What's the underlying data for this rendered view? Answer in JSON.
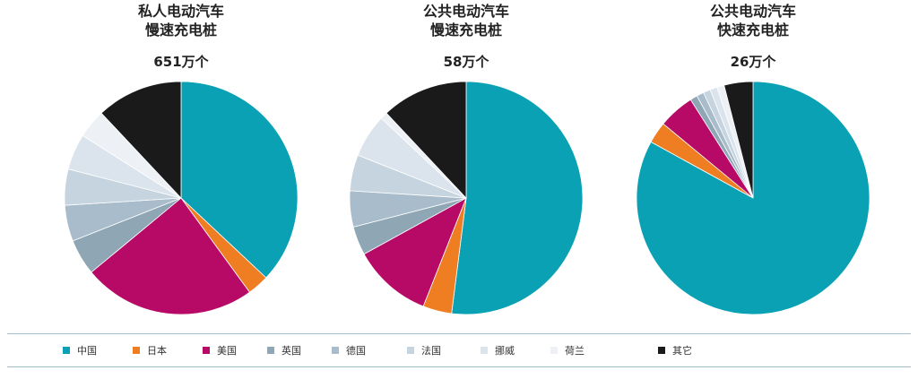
{
  "colors": {
    "中国": "#0aa1b5",
    "日本": "#ef7d22",
    "美国": "#b70a66",
    "英国": "#8fa6b5",
    "德国": "#a9bccb",
    "法国": "#c6d4df",
    "挪威": "#dbe4ec",
    "荷兰": "#edf1f5",
    "其它": "#1a1a1a"
  },
  "legend": [
    {
      "label": "中国",
      "key": "中国"
    },
    {
      "label": "日本",
      "key": "日本"
    },
    {
      "label": "美国",
      "key": "美国"
    },
    {
      "label": "英国",
      "key": "英国"
    },
    {
      "label": "德国",
      "key": "德国"
    },
    {
      "label": "法国",
      "key": "法国"
    },
    {
      "label": "挪威",
      "key": "挪威"
    },
    {
      "label": "荷兰",
      "key": "荷兰"
    },
    {
      "label": "其它",
      "key": "其它"
    }
  ],
  "chart_data": [
    {
      "type": "pie",
      "title_line1": "私人电动汽车",
      "title_line2": "慢速充电桩",
      "total": "651万个",
      "slices": [
        {
          "name": "中国",
          "value": 37
        },
        {
          "name": "日本",
          "value": 3
        },
        {
          "name": "美国",
          "value": 24
        },
        {
          "name": "英国",
          "value": 5
        },
        {
          "name": "德国",
          "value": 5
        },
        {
          "name": "法国",
          "value": 5
        },
        {
          "name": "挪威",
          "value": 5
        },
        {
          "name": "荷兰",
          "value": 4
        },
        {
          "name": "其它",
          "value": 12
        }
      ]
    },
    {
      "type": "pie",
      "title_line1": "公共电动汽车",
      "title_line2": "慢速充电桩",
      "total": "58万个",
      "slices": [
        {
          "name": "中国",
          "value": 52
        },
        {
          "name": "日本",
          "value": 4
        },
        {
          "name": "美国",
          "value": 11
        },
        {
          "name": "英国",
          "value": 4
        },
        {
          "name": "德国",
          "value": 5
        },
        {
          "name": "法国",
          "value": 5
        },
        {
          "name": "挪威",
          "value": 6
        },
        {
          "name": "荷兰",
          "value": 1
        },
        {
          "name": "其它",
          "value": 12
        }
      ]
    },
    {
      "type": "pie",
      "title_line1": "公共电动汽车",
      "title_line2": "快速充电桩",
      "total": "26万个",
      "slices": [
        {
          "name": "中国",
          "value": 83
        },
        {
          "name": "日本",
          "value": 3
        },
        {
          "name": "美国",
          "value": 5
        },
        {
          "name": "英国",
          "value": 1
        },
        {
          "name": "德国",
          "value": 1
        },
        {
          "name": "法国",
          "value": 1
        },
        {
          "name": "挪威",
          "value": 1
        },
        {
          "name": "荷兰",
          "value": 1
        },
        {
          "name": "其它",
          "value": 4
        }
      ]
    }
  ]
}
